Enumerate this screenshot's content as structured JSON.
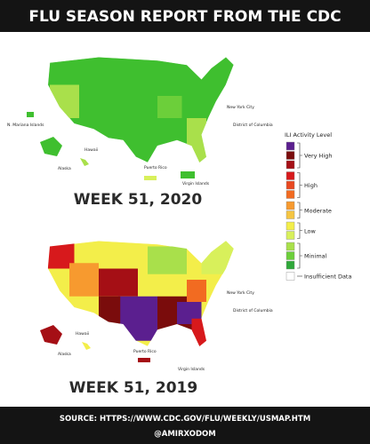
{
  "header": {
    "title": "FLU SEASON REPORT FROM THE CDC"
  },
  "maps": [
    {
      "caption": "WEEK 51, 2020",
      "labels": {
        "mariana": "N. Mariana Islands",
        "hawaii": "Hawaii",
        "alaska": "Alaska",
        "puerto_rico": "Puerto Rico",
        "virgin": "Virgin Islands",
        "nyc": "New York City",
        "dc": "District of Columbia"
      }
    },
    {
      "caption": "WEEK 51, 2019",
      "labels": {
        "hawaii": "Hawaii",
        "alaska": "Alaska",
        "puerto_rico": "Puerto Rico",
        "virgin": "Virgin Islands",
        "nyc": "New York City",
        "dc": "District of Columbia"
      }
    }
  ],
  "legend": {
    "title": "ILI Activity Level",
    "items": [
      {
        "label": "Very High",
        "colors": [
          "#5b1f8f",
          "#7a0c0c",
          "#a50f15"
        ]
      },
      {
        "label": "High",
        "colors": [
          "#d7191c",
          "#e8481f",
          "#f26b21"
        ]
      },
      {
        "label": "Moderate",
        "colors": [
          "#f79a2f",
          "#f5c542"
        ]
      },
      {
        "label": "Low",
        "colors": [
          "#f3ee4a",
          "#d8f05b"
        ]
      },
      {
        "label": "Minimal",
        "colors": [
          "#a9e04b",
          "#6ccf3a",
          "#2fa83a"
        ]
      },
      {
        "label": "Insufficient Data",
        "colors": [
          "#ffffff"
        ]
      }
    ]
  },
  "footer": {
    "source": "SOURCE: HTTPS://WWW.CDC.GOV/FLU/WEEKLY/USMAP.HTM",
    "credit": "@AMIRXODOM"
  }
}
